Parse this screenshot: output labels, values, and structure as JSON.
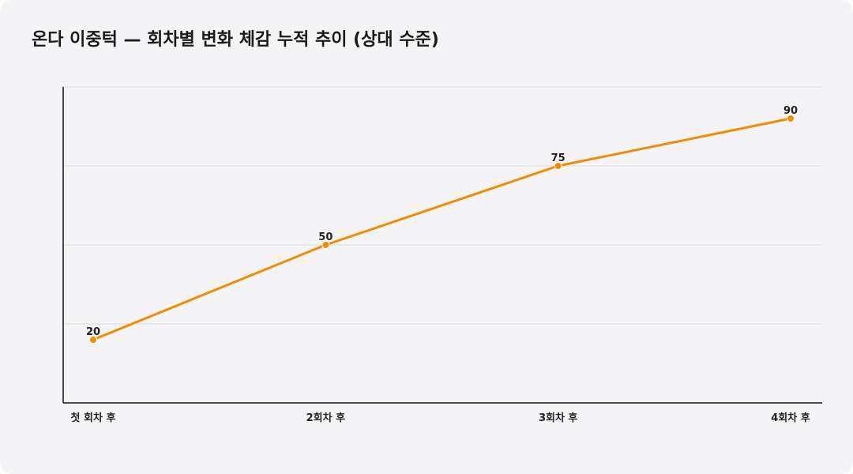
{
  "title": "온다 이중턱 — 회차별 변화 체감 누적 추이 (상대 수준)",
  "colors": {
    "line": "#f08c00",
    "grid": "#dcdcdc",
    "axis": "#111111",
    "background": "#f4f4f6"
  },
  "chart_data": {
    "type": "line",
    "title": "온다 이중턱 — 회차별 변화 체감 누적 추이 (상대 수준)",
    "categories": [
      "첫 회차 후",
      "2회차 후",
      "3회차 후",
      "4회차 후"
    ],
    "series": [
      {
        "values": [
          20,
          50,
          75,
          90
        ]
      }
    ],
    "ylim": [
      0,
      100
    ],
    "grid": true,
    "y_tick_labels_shown": false,
    "data_labels": true
  }
}
